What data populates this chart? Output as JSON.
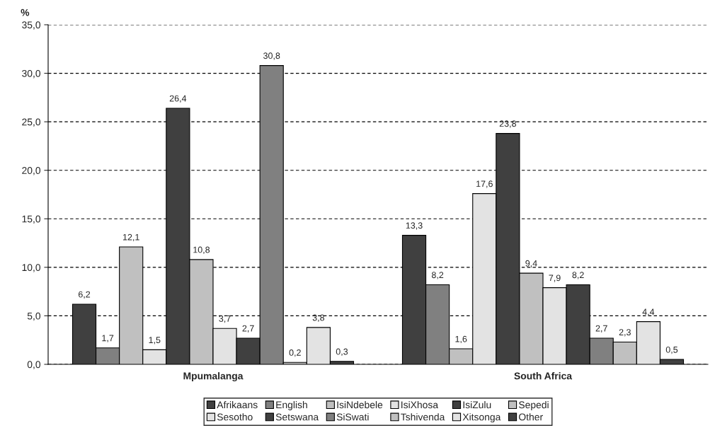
{
  "chart_data": {
    "type": "bar",
    "ylabel": "%",
    "categories": [
      "Mpumalanga",
      "South Africa"
    ],
    "series": [
      {
        "name": "Afrikaans",
        "color": "#404040",
        "values": [
          6.2,
          13.3
        ],
        "value_labels": [
          "6,2",
          "13,3"
        ]
      },
      {
        "name": "English",
        "color": "#808080",
        "values": [
          1.7,
          8.2
        ],
        "value_labels": [
          "1,7",
          "8,2"
        ]
      },
      {
        "name": "IsiNdebele",
        "color": "#c0c0c0",
        "values": [
          12.1,
          1.6
        ],
        "value_labels": [
          "12,1",
          "1,6"
        ]
      },
      {
        "name": "IsiXhosa",
        "color": "#e3e3e3",
        "values": [
          1.5,
          17.6
        ],
        "value_labels": [
          "1,5",
          "17,6"
        ]
      },
      {
        "name": "IsiZulu",
        "color": "#404040",
        "values": [
          26.4,
          23.8
        ],
        "value_labels": [
          "26,4",
          "23,8"
        ]
      },
      {
        "name": "Sepedi",
        "color": "#c0c0c0",
        "values": [
          10.8,
          9.4
        ],
        "value_labels": [
          "10,8",
          "9,4"
        ]
      },
      {
        "name": "Sesotho",
        "color": "#e3e3e3",
        "values": [
          3.7,
          7.9
        ],
        "value_labels": [
          "3,7",
          "7,9"
        ]
      },
      {
        "name": "Setswana",
        "color": "#404040",
        "values": [
          2.7,
          8.2
        ],
        "value_labels": [
          "2,7",
          "8,2"
        ]
      },
      {
        "name": "SiSwati",
        "color": "#808080",
        "values": [
          30.8,
          2.7
        ],
        "value_labels": [
          "30,8",
          "2,7"
        ]
      },
      {
        "name": "Tshivenda",
        "color": "#c0c0c0",
        "values": [
          0.2,
          2.3
        ],
        "value_labels": [
          "0,2",
          "2,3"
        ]
      },
      {
        "name": "Xitsonga",
        "color": "#e3e3e3",
        "values": [
          3.8,
          4.4
        ],
        "value_labels": [
          "3,8",
          "4,4"
        ]
      },
      {
        "name": "Other",
        "color": "#404040",
        "values": [
          0.3,
          0.5
        ],
        "value_labels": [
          "0,3",
          "0,5"
        ]
      }
    ],
    "ylim": [
      0,
      35
    ],
    "yticks": [
      {
        "value": 0,
        "label": "0,0"
      },
      {
        "value": 5,
        "label": "5,0"
      },
      {
        "value": 10,
        "label": "10,0"
      },
      {
        "value": 15,
        "label": "15,0"
      },
      {
        "value": 20,
        "label": "20,0"
      },
      {
        "value": 25,
        "label": "25,0"
      },
      {
        "value": 30,
        "label": "30,0"
      },
      {
        "value": 35,
        "label": "35,0"
      }
    ],
    "grid": "y",
    "legend": "bottom"
  }
}
